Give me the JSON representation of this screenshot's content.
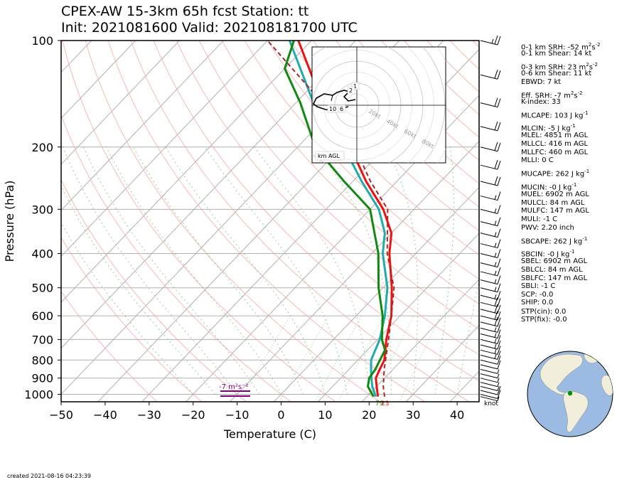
{
  "title_line1": "CPEX-AW 15-3km  65h fcst  Station: tt",
  "title_line2": "Init: 2021081600  Valid: 202108181700 UTC",
  "footer": "created 2021-08-16 04:23:39",
  "chart_data": {
    "type": "line",
    "xlabel": "Temperature (C)",
    "ylabel": "Pressure (hPa)",
    "xlim": [
      -50,
      45
    ],
    "ylim": [
      1050,
      100
    ],
    "y_scale": "log",
    "x_ticks": [
      -50,
      -40,
      -30,
      -20,
      -10,
      0,
      10,
      20,
      30,
      40
    ],
    "y_ticks": [
      100,
      200,
      300,
      400,
      500,
      600,
      700,
      800,
      900,
      1000
    ],
    "grid": true,
    "series": [
      {
        "role": "temperature",
        "color": "#ee1111",
        "p": [
          1015,
          950,
          900,
          850,
          800,
          700,
          600,
          500,
          400,
          350,
          300,
          250,
          200,
          150,
          100
        ],
        "values": [
          22.5,
          20.0,
          18.0,
          17.0,
          16.0,
          12.0,
          8.0,
          2.0,
          -6.0,
          -10.0,
          -17.0,
          -27.0,
          -38.0,
          -54.0,
          -73.0
        ]
      },
      {
        "role": "wetbulb",
        "color": "#22aaaa",
        "p": [
          1015,
          950,
          900,
          850,
          800,
          700,
          600,
          500,
          400,
          350,
          300,
          250,
          200,
          150,
          100
        ],
        "values": [
          22.0,
          19.0,
          17.0,
          15.0,
          13.0,
          10.5,
          6.5,
          1.0,
          -7.5,
          -11.5,
          -18.0,
          -28.0,
          -39.5,
          -56.0,
          -75.0
        ]
      },
      {
        "role": "dewpoint",
        "color": "#118811",
        "p": [
          1015,
          950,
          900,
          850,
          800,
          750,
          700,
          600,
          500,
          400,
          300,
          250,
          200,
          150,
          120,
          100
        ],
        "values": [
          21.5,
          18.0,
          16.5,
          16.0,
          15.0,
          14.0,
          11.0,
          6.0,
          -1.0,
          -8.5,
          -20.0,
          -32.0,
          -46.0,
          -59.0,
          -70.0,
          -74.0
        ]
      },
      {
        "role": "parcel",
        "color": "#a52a2a",
        "dashed": true,
        "p": [
          1015,
          950,
          850,
          700,
          600,
          500,
          400,
          300,
          250,
          200,
          150,
          100
        ],
        "values": [
          24.0,
          21.5,
          18.0,
          12.5,
          8.0,
          2.5,
          -6.5,
          -16.0,
          -26.0,
          -37.0,
          -54.0,
          -80.0
        ]
      }
    ],
    "wind_barbs": {
      "p": [
        1015,
        1000,
        975,
        950,
        925,
        900,
        875,
        850,
        825,
        800,
        775,
        750,
        725,
        700,
        675,
        650,
        625,
        600,
        575,
        550,
        525,
        500,
        475,
        450,
        425,
        400,
        375,
        350,
        325,
        300,
        275,
        250,
        225,
        200,
        175,
        150,
        125,
        100
      ],
      "speed_kt": [
        5,
        10,
        10,
        5,
        5,
        5,
        5,
        5,
        10,
        10,
        15,
        15,
        15,
        15,
        15,
        15,
        20,
        20,
        20,
        20,
        15,
        15,
        15,
        15,
        15,
        15,
        15,
        15,
        15,
        15,
        15,
        20,
        20,
        20,
        20,
        20,
        20,
        25
      ],
      "label": "knot"
    },
    "srh_bar_label": "-7 m²s⁻²",
    "surface_labels": [
      "79",
      "23"
    ]
  },
  "hodograph": {
    "ring_labels": [
      "20kt",
      "40kt",
      "60kt",
      "80kt"
    ],
    "height_labels": [
      "1",
      "2",
      "10",
      "6"
    ],
    "footer_label": "km AGL"
  },
  "indices": [
    {
      "label": "0-1 km SRH: -52 m",
      "unit_sup": "2",
      "rest": "s",
      "rest_sup": "-2"
    },
    {
      "label": "0-1 km Shear: 14 kt"
    },
    {
      "label": "0-3 km SRH: 23 m",
      "unit_sup": "2",
      "rest": "s",
      "rest_sup": "-2"
    },
    {
      "label": "0-6 km Shear: 11 kt"
    },
    {
      "label": "EBWD: 7 kt"
    },
    {
      "label": "Eff. SRH: -7 m",
      "unit_sup": "2",
      "rest": "s",
      "rest_sup": "-2"
    },
    {
      "label": "K-index: 33"
    },
    {
      "label": "MLCAPE: 103 J kg",
      "unit_sup": "-1"
    },
    {
      "label": "MLCIN: -5 J kg",
      "unit_sup": "-1"
    },
    {
      "label": "MLEL: 4851 m AGL"
    },
    {
      "label": "MLLCL: 416 m AGL"
    },
    {
      "label": "MLLFC: 460 m AGL"
    },
    {
      "label": "MLLI: 0 C"
    },
    {
      "label": "MUCAPE: 262 J kg",
      "unit_sup": "-1"
    },
    {
      "label": "MUCIN: -0 J kg",
      "unit_sup": "-1"
    },
    {
      "label": "MUEL: 6902 m AGL"
    },
    {
      "label": "MULCL: 84 m AGL"
    },
    {
      "label": "MULFC: 147 m AGL"
    },
    {
      "label": "MULI: -1 C"
    },
    {
      "label": "PWV: 2.20 inch"
    },
    {
      "label": "SBCAPE: 262 J kg",
      "unit_sup": "-1"
    },
    {
      "label": "SBCIN: -0 J kg",
      "unit_sup": "-1"
    },
    {
      "label": "SBEL: 6902 m AGL"
    },
    {
      "label": "SBLCL: 84 m AGL"
    },
    {
      "label": "SBLFC: 147 m AGL"
    },
    {
      "label": "SBLI: -1 C"
    },
    {
      "label": "SCP: -0.0"
    },
    {
      "label": "SHIP: 0.0"
    },
    {
      "label": "STP(cin): 0.0"
    },
    {
      "label": "STP(fix): -0.0"
    }
  ],
  "colors": {
    "land": "#f1eedc",
    "ocean": "#9bbbe3",
    "station": "#009000"
  }
}
